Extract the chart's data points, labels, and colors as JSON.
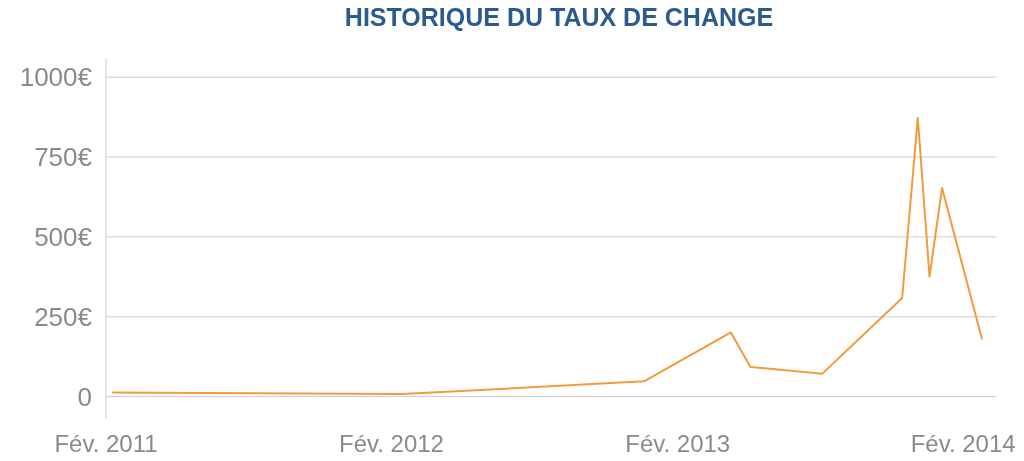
{
  "chart_data": {
    "type": "line",
    "title": "HISTORIQUE DU TAUX DE CHANGE",
    "x": [
      "2011-02-10",
      "2012-02-15",
      "2012-12-20",
      "2013-04-10",
      "2013-05-05",
      "2013-08-05",
      "2013-11-15",
      "2013-12-05",
      "2013-12-20",
      "2014-01-05",
      "2014-02-25"
    ],
    "series": [
      {
        "color": "#f39a3c",
        "values": [
          13,
          8,
          48,
          201,
          93,
          72,
          309,
          872,
          376,
          653,
          181
        ]
      }
    ],
    "xlim": [
      "2011-02-01",
      "2014-03-15"
    ],
    "xticks": [
      {
        "value": "2011-02-01",
        "label": "Fév. 2011"
      },
      {
        "value": "2012-02-01",
        "label": "Fév. 2012"
      },
      {
        "value": "2013-02-01",
        "label": "Fév. 2013"
      },
      {
        "value": "2014-02-01",
        "label": "Fév. 2014"
      }
    ],
    "ylim": [
      -70,
      1060
    ],
    "yticks": [
      0,
      {
        "value": 250,
        "label": "250€"
      },
      {
        "value": 500,
        "label": "500€"
      },
      {
        "value": 750,
        "label": "750€"
      },
      {
        "value": 1000,
        "label": "1000€"
      }
    ],
    "grid": "y",
    "marker": "none",
    "line_style": "solid"
  }
}
